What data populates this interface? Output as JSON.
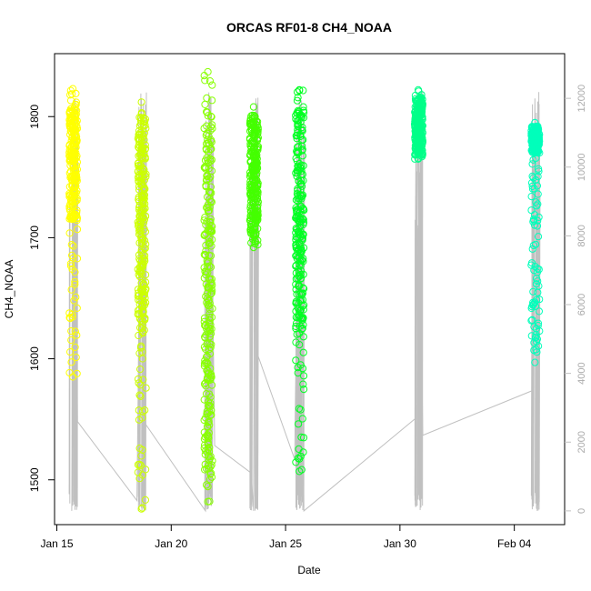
{
  "chart_data": {
    "type": "scatter",
    "title": "ORCAS RF01-8 CH4_NOAA",
    "xlabel": "Date",
    "ylabel": "CH4_NOAA",
    "x_tick_labels": [
      "Jan 15",
      "Jan 20",
      "Jan 25",
      "Jan 30",
      "Feb 04"
    ],
    "x_tick_days": [
      15,
      20,
      25,
      30,
      35
    ],
    "xlim_days": [
      14.9,
      37.2
    ],
    "y_ticks": [
      1500,
      1600,
      1700,
      1800
    ],
    "ylim": [
      1463,
      1852
    ],
    "y2_ticks": [
      0,
      2000,
      4000,
      6000,
      8000,
      10000,
      12000
    ],
    "y2_lim": [
      -400,
      13300
    ],
    "y2_color": "#c0c0c0",
    "grid": false,
    "flights": [
      {
        "day": 15.7,
        "color": "#ffff00",
        "ch4_min": 1585,
        "ch4_max": 1823,
        "dense_min": 1715,
        "dense_max": 1808
      },
      {
        "day": 18.7,
        "color": "#ccff00",
        "ch4_min": 1476,
        "ch4_max": 1812,
        "dense_min": 1625,
        "dense_max": 1800
      },
      {
        "day": 21.6,
        "color": "#88ff00",
        "ch4_min": 1482,
        "ch4_max": 1837,
        "dense_min": 1500,
        "dense_max": 1812
      },
      {
        "day": 23.6,
        "color": "#44ff00",
        "ch4_min": 1692,
        "ch4_max": 1808,
        "dense_min": 1700,
        "dense_max": 1800
      },
      {
        "day": 25.6,
        "color": "#00ff22",
        "ch4_min": 1507,
        "ch4_max": 1822,
        "dense_min": 1625,
        "dense_max": 1805
      },
      {
        "day": 30.8,
        "color": "#00ff88",
        "ch4_min": 1765,
        "ch4_max": 1822,
        "dense_min": 1768,
        "dense_max": 1815
      },
      {
        "day": 35.9,
        "color": "#00ffbb",
        "ch4_min": 1597,
        "ch4_max": 1795,
        "dense_min": 1770,
        "dense_max": 1792
      }
    ],
    "altitude_trace": [
      {
        "day": 15.65,
        "alt": 0
      },
      {
        "day": 15.8,
        "alt": 12000
      },
      {
        "day": 15.9,
        "alt": 2600
      },
      {
        "day": 18.5,
        "alt": 300
      },
      {
        "day": 18.7,
        "alt": 12000
      },
      {
        "day": 18.8,
        "alt": 2600
      },
      {
        "day": 21.5,
        "alt": 0
      },
      {
        "day": 21.7,
        "alt": 12000
      },
      {
        "day": 21.9,
        "alt": 1900
      },
      {
        "day": 23.5,
        "alt": 1100
      },
      {
        "day": 23.6,
        "alt": 0
      },
      {
        "day": 23.7,
        "alt": 12000
      },
      {
        "day": 23.8,
        "alt": 4500
      },
      {
        "day": 25.4,
        "alt": 1500
      },
      {
        "day": 25.6,
        "alt": 12000
      },
      {
        "day": 25.8,
        "alt": 0
      },
      {
        "day": 30.7,
        "alt": 2700
      },
      {
        "day": 30.8,
        "alt": 12000
      },
      {
        "day": 31.0,
        "alt": 2200
      },
      {
        "day": 35.8,
        "alt": 3500
      },
      {
        "day": 35.9,
        "alt": 12000
      },
      {
        "day": 36.0,
        "alt": 0
      }
    ]
  }
}
